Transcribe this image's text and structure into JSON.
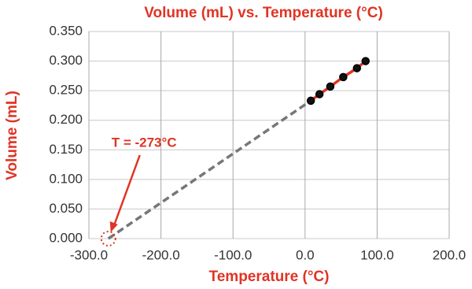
{
  "chart_data": {
    "type": "scatter",
    "title": "Volume (mL) vs. Temperature (°C)",
    "x_label": "Temperature (°C)",
    "y_label": "Volume (mL)",
    "xlim": [
      -300,
      200
    ],
    "ylim": [
      0,
      0.35
    ],
    "xticks": [
      {
        "value": -300,
        "label": "-300.0"
      },
      {
        "value": -200,
        "label": "-200.0"
      },
      {
        "value": -100,
        "label": "-100.0"
      },
      {
        "value": 0,
        "label": "0.0"
      },
      {
        "value": 100,
        "label": "100.0"
      },
      {
        "value": 200,
        "label": "200.0"
      }
    ],
    "yticks": [
      {
        "value": 0,
        "label": "0.000"
      },
      {
        "value": 0.05,
        "label": "0.050"
      },
      {
        "value": 0.1,
        "label": "0.100"
      },
      {
        "value": 0.15,
        "label": "0.150"
      },
      {
        "value": 0.2,
        "label": "0.200"
      },
      {
        "value": 0.25,
        "label": "0.250"
      },
      {
        "value": 0.3,
        "label": "0.300"
      },
      {
        "value": 0.35,
        "label": "0.350"
      }
    ],
    "grid": true,
    "series": [
      {
        "color": "#e03424",
        "marker_color": "#111111",
        "x": [
          8,
          20,
          35,
          53,
          72,
          84
        ],
        "values": [
          0.233,
          0.244,
          0.257,
          0.273,
          0.288,
          0.3
        ]
      },
      {
        "color": "#777777",
        "dashed": true,
        "x": [
          -273,
          8
        ],
        "values": [
          0,
          0.233
        ]
      }
    ],
    "annotation": {
      "text": "T = -273°C",
      "x": -273,
      "y": 0,
      "color": "#e03424"
    }
  }
}
